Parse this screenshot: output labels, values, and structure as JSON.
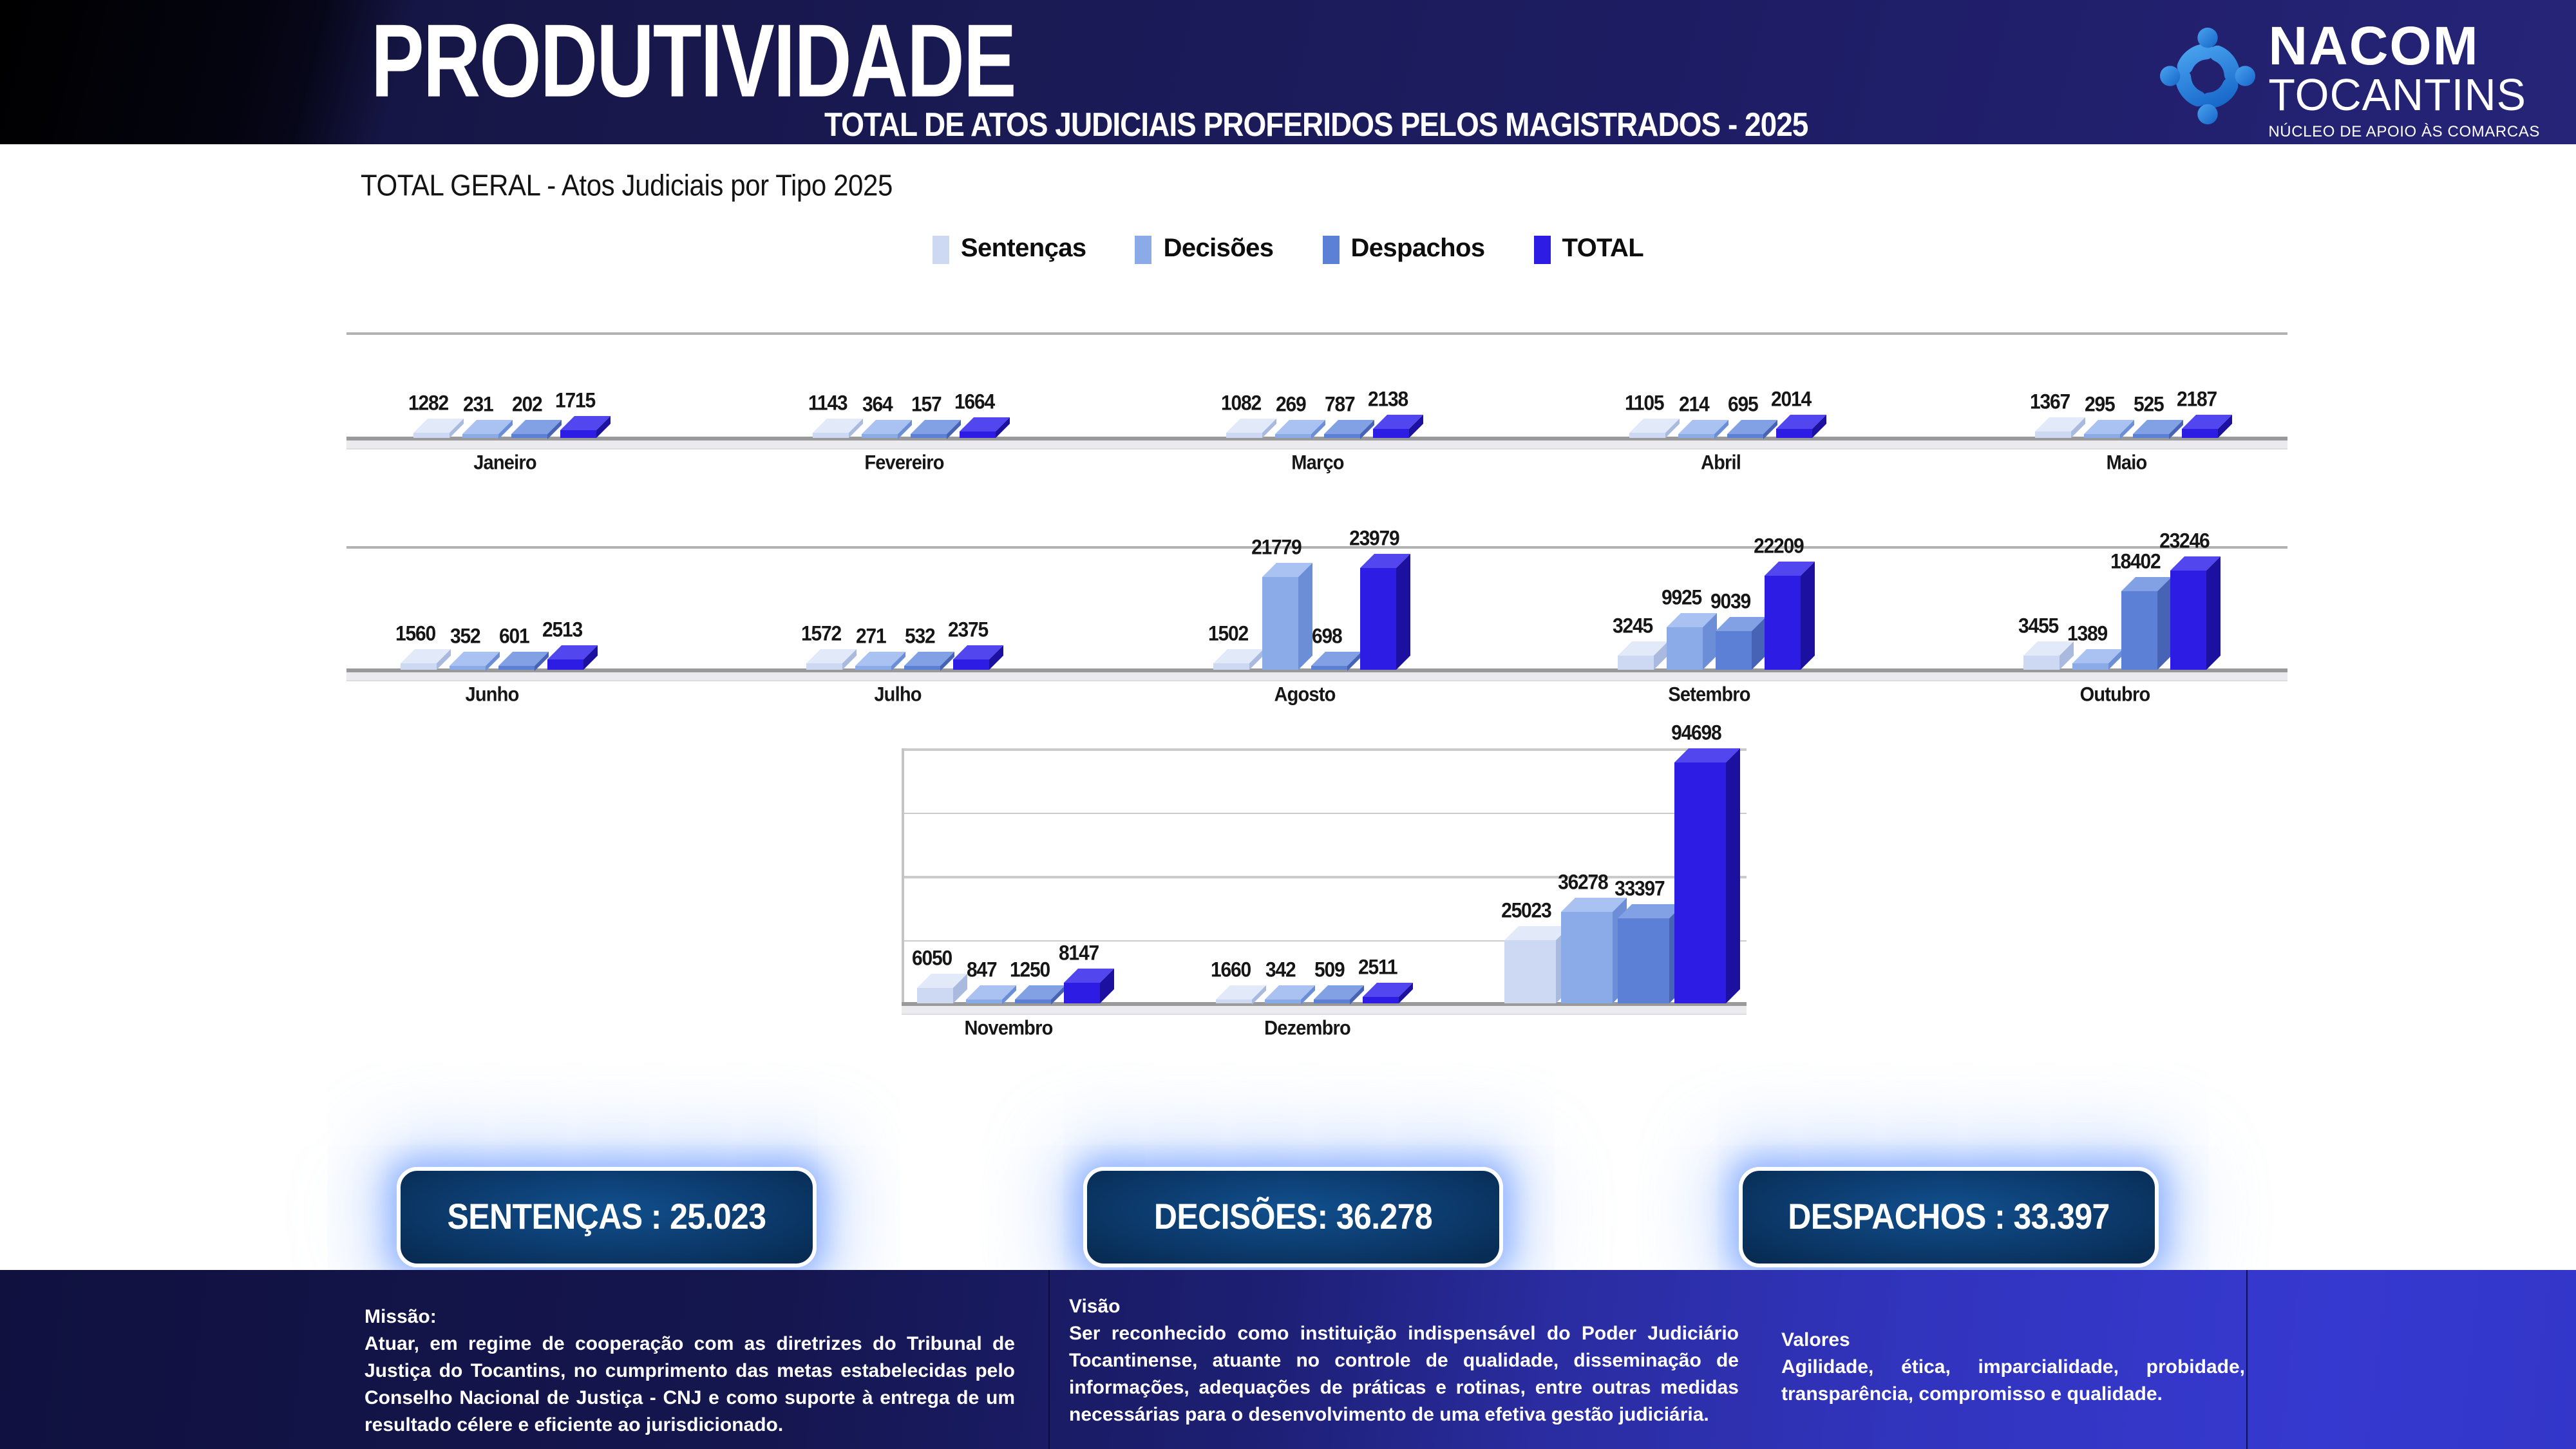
{
  "header": {
    "title": "PRODUTIVIDADE",
    "subtitle": "TOTAL DE ATOS JUDICIAIS PROFERIDOS PELOS MAGISTRADOS - 2025",
    "logo": {
      "name": "NACOM",
      "region": "TOCANTINS",
      "tagline": "NÚCLEO DE APOIO ÀS COMARCAS",
      "icon": "people-circle-icon",
      "icon_color_top": "#4aa3f0",
      "icon_color_bottom": "#1565c8"
    }
  },
  "chart_title": "TOTAL GERAL - Atos Judiciais por Tipo 2025",
  "chart_data": {
    "type": "bar",
    "title": "TOTAL GERAL - Atos Judiciais por Tipo 2025",
    "legend_position": "top",
    "grid": true,
    "gridline_interval": 25000,
    "ylim": [
      0,
      100000
    ],
    "series_names": [
      "Sentenças",
      "Decisões",
      "Despachos",
      "TOTAL"
    ],
    "colors": [
      {
        "front": "#cdd9f3",
        "top": "#e2eaf9",
        "side": "#a9bade"
      },
      {
        "front": "#8aabe8",
        "top": "#a9c2f1",
        "side": "#6c8ed6"
      },
      {
        "front": "#5c80d6",
        "top": "#82a1e5",
        "side": "#4763b5"
      },
      {
        "front": "#2c1ce4",
        "top": "#5246ee",
        "side": "#1b10a0"
      }
    ],
    "rows": [
      {
        "groups": [
          {
            "label": "Janeiro",
            "values": [
              1282,
              231,
              202,
              1715
            ]
          },
          {
            "label": "Fevereiro",
            "values": [
              1143,
              364,
              157,
              1664
            ]
          },
          {
            "label": "Março",
            "values": [
              1082,
              269,
              787,
              2138
            ]
          },
          {
            "label": "Abril",
            "values": [
              1105,
              214,
              695,
              2014
            ]
          },
          {
            "label": "Maio",
            "values": [
              1367,
              295,
              525,
              2187
            ]
          }
        ]
      },
      {
        "groups": [
          {
            "label": "Junho",
            "values": [
              1560,
              352,
              601,
              2513
            ]
          },
          {
            "label": "Julho",
            "values": [
              1572,
              271,
              532,
              2375
            ]
          },
          {
            "label": "Agosto",
            "values": [
              1502,
              21779,
              698,
              23979
            ]
          },
          {
            "label": "Setembro",
            "values": [
              3245,
              9925,
              9039,
              22209
            ]
          },
          {
            "label": "Outubro",
            "values": [
              3455,
              1389,
              18402,
              23246
            ]
          }
        ]
      },
      {
        "groups": [
          {
            "label": "Novembro",
            "values": [
              6050,
              847,
              1250,
              8147
            ]
          },
          {
            "label": "Dezembro",
            "values": [
              1660,
              342,
              509,
              2511
            ]
          },
          {
            "label": "",
            "values": [
              25023,
              36278,
              33397,
              94698
            ]
          }
        ]
      }
    ]
  },
  "totals": [
    {
      "text": "SENTENÇAS : 25.023"
    },
    {
      "text": "DECISÕES: 36.278"
    },
    {
      "text": "DESPACHOS : 33.397"
    }
  ],
  "footer": {
    "mission_title": "Missão:",
    "mission_body": "Atuar, em regime de cooperação com as diretrizes do Tribunal de Justiça do Tocantins, no cumprimento das metas estabelecidas pelo Conselho Nacional de Justiça - CNJ e como suporte à entrega de um resultado célere e eficiente ao jurisdicionado.",
    "vision_title": "Visão",
    "vision_body": "Ser reconhecido como instituição indispensável do Poder Judiciário Tocantinense, atuante no controle de qualidade, disseminação de informações, adequações de práticas e rotinas, entre outras medidas necessárias para o desenvolvimento de uma efetiva gestão judiciária.",
    "values_title": "Valores",
    "values_body": "Agilidade, ética, imparcialidade, probidade, transparência, compromisso e qualidade."
  }
}
